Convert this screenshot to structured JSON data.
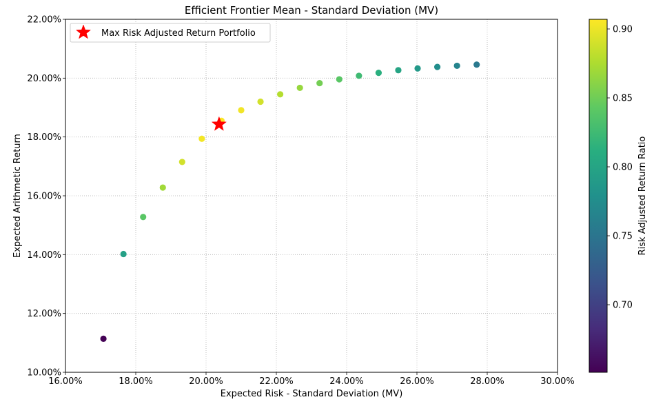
{
  "chart_data": {
    "type": "scatter",
    "title": "Efficient Frontier Mean - Standard Deviation (MV)",
    "xlabel": "Expected Risk - Standard Deviation (MV)",
    "ylabel": "Expected Arithmetic Return",
    "xlim": [
      0.16,
      0.3
    ],
    "ylim": [
      0.1,
      0.22
    ],
    "x_ticks": [
      0.16,
      0.18,
      0.2,
      0.22,
      0.24,
      0.26,
      0.28,
      0.3
    ],
    "x_tick_labels": [
      "16.00%",
      "18.00%",
      "20.00%",
      "22.00%",
      "24.00%",
      "26.00%",
      "28.00%",
      "30.00%"
    ],
    "y_ticks": [
      0.1,
      0.12,
      0.14,
      0.16,
      0.18,
      0.2,
      0.22
    ],
    "y_tick_labels": [
      "10.00%",
      "12.00%",
      "14.00%",
      "16.00%",
      "18.00%",
      "20.00%",
      "22.00%"
    ],
    "grid": true,
    "colormap": "viridis",
    "colorbar": {
      "label": "Risk Adjusted Return Ratio",
      "range": [
        0.651,
        0.907
      ],
      "ticks": [
        0.7,
        0.75,
        0.8,
        0.85,
        0.9
      ],
      "tick_labels": [
        "0.70",
        "0.75",
        "0.80",
        "0.85",
        "0.90"
      ]
    },
    "points": [
      {
        "x": 0.1708,
        "y": 0.1114,
        "ratio": 0.652
      },
      {
        "x": 0.1765,
        "y": 0.1402,
        "ratio": 0.795
      },
      {
        "x": 0.1821,
        "y": 0.1528,
        "ratio": 0.84
      },
      {
        "x": 0.1877,
        "y": 0.1628,
        "ratio": 0.87
      },
      {
        "x": 0.1932,
        "y": 0.1715,
        "ratio": 0.89
      },
      {
        "x": 0.1988,
        "y": 0.1794,
        "ratio": 0.903
      },
      {
        "x": 0.2044,
        "y": 0.1855,
        "ratio": 0.906
      },
      {
        "x": 0.21,
        "y": 0.1891,
        "ratio": 0.902
      },
      {
        "x": 0.2155,
        "y": 0.192,
        "ratio": 0.89
      },
      {
        "x": 0.2211,
        "y": 0.1945,
        "ratio": 0.878
      },
      {
        "x": 0.2267,
        "y": 0.1967,
        "ratio": 0.866
      },
      {
        "x": 0.2323,
        "y": 0.1983,
        "ratio": 0.852
      },
      {
        "x": 0.2379,
        "y": 0.1996,
        "ratio": 0.84
      },
      {
        "x": 0.2435,
        "y": 0.2008,
        "ratio": 0.825
      },
      {
        "x": 0.2491,
        "y": 0.2018,
        "ratio": 0.812
      },
      {
        "x": 0.2547,
        "y": 0.2027,
        "ratio": 0.8
      },
      {
        "x": 0.2602,
        "y": 0.2033,
        "ratio": 0.788
      },
      {
        "x": 0.2658,
        "y": 0.2038,
        "ratio": 0.776
      },
      {
        "x": 0.2714,
        "y": 0.2042,
        "ratio": 0.766
      },
      {
        "x": 0.277,
        "y": 0.2046,
        "ratio": 0.754
      }
    ],
    "highlight": {
      "name": "Max Risk Adjusted Return Portfolio",
      "x": 0.2037,
      "y": 0.1843,
      "marker": "star",
      "color": "#ff0000"
    },
    "legend": {
      "placement": "top-left",
      "entries": [
        "Max Risk Adjusted Return Portfolio"
      ]
    }
  }
}
